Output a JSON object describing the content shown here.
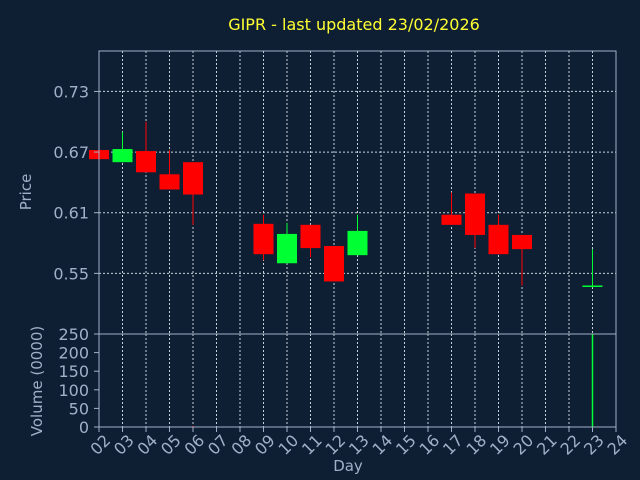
{
  "chart_data": {
    "type": "candlestick",
    "title": "GIPR - last updated 23/02/2026",
    "xlabel": "Day",
    "price_panel": {
      "ylabel": "Price",
      "ylim": [
        0.49,
        0.77
      ],
      "yticks": [
        0.55,
        0.61,
        0.67,
        0.73
      ],
      "ytick_labels": [
        "0.55",
        "0.61",
        "0.67",
        "0.73"
      ]
    },
    "volume_panel": {
      "ylabel": "Volume (0000)",
      "ylim": [
        0,
        250
      ],
      "yticks": [
        0,
        50,
        100,
        150,
        200,
        250
      ],
      "ytick_labels": [
        "0",
        "50",
        "100",
        "150",
        "200",
        "250"
      ]
    },
    "xlim": [
      2,
      24
    ],
    "x_ticks": [
      "02",
      "03",
      "04",
      "05",
      "06",
      "07",
      "08",
      "09",
      "10",
      "11",
      "12",
      "13",
      "14",
      "15",
      "16",
      "17",
      "18",
      "19",
      "20",
      "21",
      "22",
      "23",
      "24"
    ],
    "grid": true,
    "colors": {
      "background": "#0f1f33",
      "axis": "#9fb1c8",
      "grid": "#c8d2dc",
      "title": "#ffff33",
      "up": "#00ff33",
      "down": "#ff0000"
    },
    "candles": [
      {
        "day": 2,
        "open": 0.672,
        "high": 0.673,
        "low": 0.663,
        "close": 0.663
      },
      {
        "day": 3,
        "open": 0.66,
        "high": 0.69,
        "low": 0.66,
        "close": 0.673
      },
      {
        "day": 4,
        "open": 0.671,
        "high": 0.7,
        "low": 0.65,
        "close": 0.65
      },
      {
        "day": 5,
        "open": 0.648,
        "high": 0.672,
        "low": 0.633,
        "close": 0.633
      },
      {
        "day": 6,
        "open": 0.66,
        "high": 0.66,
        "low": 0.598,
        "close": 0.628
      },
      {
        "day": 9,
        "open": 0.599,
        "high": 0.608,
        "low": 0.563,
        "close": 0.569
      },
      {
        "day": 10,
        "open": 0.56,
        "high": 0.6,
        "low": 0.56,
        "close": 0.589
      },
      {
        "day": 11,
        "open": 0.598,
        "high": 0.598,
        "low": 0.566,
        "close": 0.575
      },
      {
        "day": 12,
        "open": 0.577,
        "high": 0.577,
        "low": 0.542,
        "close": 0.542
      },
      {
        "day": 13,
        "open": 0.568,
        "high": 0.608,
        "low": 0.568,
        "close": 0.592
      },
      {
        "day": 17,
        "open": 0.608,
        "high": 0.63,
        "low": 0.598,
        "close": 0.598
      },
      {
        "day": 18,
        "open": 0.629,
        "high": 0.629,
        "low": 0.575,
        "close": 0.588
      },
      {
        "day": 19,
        "open": 0.598,
        "high": 0.608,
        "low": 0.569,
        "close": 0.569
      },
      {
        "day": 20,
        "open": 0.588,
        "high": 0.588,
        "low": 0.538,
        "close": 0.574
      },
      {
        "day": 23,
        "open": 0.538,
        "high": 0.574,
        "low": 0.536,
        "close": 0.538
      }
    ],
    "volume": [
      {
        "day": 6,
        "value": 3
      },
      {
        "day": 23,
        "value": 250
      }
    ]
  }
}
